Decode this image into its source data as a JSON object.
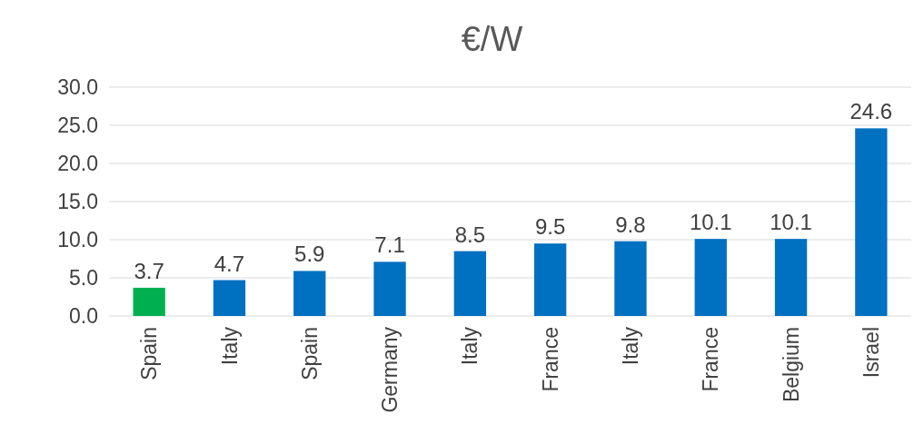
{
  "chart_data": {
    "type": "bar",
    "title": "€/W",
    "categories": [
      "Spain",
      "Italy",
      "Spain",
      "Germany",
      "Italy",
      "France",
      "Italy",
      "France",
      "Belgium",
      "Israel"
    ],
    "values": [
      3.7,
      4.7,
      5.9,
      7.1,
      8.5,
      9.5,
      9.8,
      10.1,
      10.1,
      24.6
    ],
    "colors": [
      "#00b050",
      "#0070c0",
      "#0070c0",
      "#0070c0",
      "#0070c0",
      "#0070c0",
      "#0070c0",
      "#0070c0",
      "#0070c0",
      "#0070c0"
    ],
    "ylim": [
      0,
      30
    ],
    "yticks": [
      {
        "value": 0,
        "label": "0.0"
      },
      {
        "value": 5,
        "label": "5.0"
      },
      {
        "value": 10,
        "label": "10.0"
      },
      {
        "value": 15,
        "label": "15.0"
      },
      {
        "value": 20,
        "label": "20.0"
      },
      {
        "value": 25,
        "label": "25.0"
      },
      {
        "value": 30,
        "label": "30.0"
      }
    ],
    "grid": "y",
    "data_labels": true
  }
}
